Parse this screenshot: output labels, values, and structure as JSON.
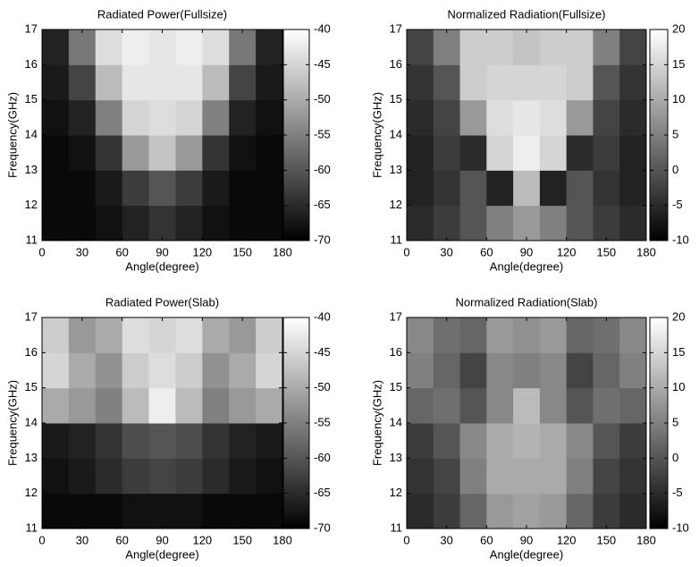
{
  "chart_data": [
    {
      "type": "heatmap",
      "title": "Radiated Power(Fullsize)",
      "xlabel": "Angle(degree)",
      "ylabel": "Frequency(GHz)",
      "x": [
        10,
        30,
        50,
        70,
        90,
        110,
        130,
        150,
        170
      ],
      "y": [
        11.5,
        12.5,
        13.5,
        14.5,
        15.5,
        16.5
      ],
      "z": [
        [
          -69,
          -69,
          -68,
          -66,
          -64,
          -66,
          -68,
          -69,
          -69
        ],
        [
          -69,
          -69,
          -67,
          -63,
          -60,
          -63,
          -67,
          -69,
          -69
        ],
        [
          -69,
          -68,
          -64,
          -52,
          -47,
          -52,
          -64,
          -68,
          -69
        ],
        [
          -68,
          -66,
          -55,
          -45,
          -44,
          -45,
          -55,
          -66,
          -68
        ],
        [
          -67,
          -62,
          -48,
          -43,
          -43,
          -43,
          -48,
          -62,
          -67
        ],
        [
          -66,
          -56,
          -44,
          -42,
          -43,
          -42,
          -44,
          -56,
          -66
        ]
      ],
      "xlim": [
        0,
        180
      ],
      "xticks": [
        0,
        30,
        60,
        90,
        120,
        150,
        180
      ],
      "ylim": [
        11,
        17
      ],
      "yticks": [
        11,
        12,
        13,
        14,
        15,
        16,
        17
      ],
      "zlim": [
        -70,
        -40
      ],
      "zticks": [
        -70,
        -65,
        -60,
        -55,
        -50,
        -45,
        -40
      ],
      "colormap": "gray"
    },
    {
      "type": "heatmap",
      "title": "Normalized Radiation(Fullsize)",
      "xlabel": "Angle(degree)",
      "ylabel": "Frequency(GHz)",
      "x": [
        10,
        30,
        50,
        70,
        90,
        110,
        130,
        150,
        170
      ],
      "y": [
        11.5,
        12.5,
        13.5,
        14.5,
        15.5,
        16.5
      ],
      "z": [
        [
          -5,
          -3,
          0,
          5,
          8,
          5,
          0,
          -3,
          -5
        ],
        [
          -6,
          -4,
          0,
          -6,
          12,
          -6,
          0,
          -4,
          -6
        ],
        [
          -6,
          -3,
          -5,
          15,
          18,
          15,
          -5,
          -3,
          -6
        ],
        [
          -5,
          -2,
          8,
          16,
          17,
          16,
          8,
          -2,
          -5
        ],
        [
          -4,
          0,
          14,
          15,
          15,
          15,
          14,
          0,
          -4
        ],
        [
          -2,
          5,
          14,
          14,
          13,
          14,
          14,
          5,
          -2
        ]
      ],
      "xlim": [
        0,
        180
      ],
      "xticks": [
        0,
        30,
        60,
        90,
        120,
        150,
        180
      ],
      "ylim": [
        11,
        17
      ],
      "yticks": [
        11,
        12,
        13,
        14,
        15,
        16,
        17
      ],
      "zlim": [
        -10,
        20
      ],
      "zticks": [
        -10,
        -5,
        0,
        5,
        10,
        15,
        20
      ],
      "colormap": "gray"
    },
    {
      "type": "heatmap",
      "title": "Radiated Power(Slab)",
      "xlabel": "Angle(degree)",
      "ylabel": "Frequency(GHz)",
      "x": [
        10,
        30,
        50,
        70,
        90,
        110,
        130,
        150,
        170
      ],
      "y": [
        11.5,
        12.5,
        13.5,
        14.5,
        15.5,
        16.5
      ],
      "z": [
        [
          -69,
          -69,
          -69,
          -68,
          -68,
          -68,
          -69,
          -69,
          -69
        ],
        [
          -68,
          -67,
          -65,
          -63,
          -62,
          -63,
          -65,
          -67,
          -68
        ],
        [
          -67,
          -66,
          -64,
          -61,
          -60,
          -61,
          -64,
          -66,
          -67
        ],
        [
          -50,
          -52,
          -55,
          -48,
          -42,
          -48,
          -55,
          -52,
          -50
        ],
        [
          -45,
          -50,
          -53,
          -46,
          -44,
          -46,
          -53,
          -50,
          -45
        ],
        [
          -46,
          -52,
          -50,
          -44,
          -45,
          -44,
          -50,
          -52,
          -46
        ]
      ],
      "xlim": [
        0,
        180
      ],
      "xticks": [
        0,
        30,
        60,
        90,
        120,
        150,
        180
      ],
      "ylim": [
        11,
        17
      ],
      "yticks": [
        11,
        12,
        13,
        14,
        15,
        16,
        17
      ],
      "zlim": [
        -70,
        -40
      ],
      "zticks": [
        -70,
        -65,
        -60,
        -55,
        -50,
        -45,
        -40
      ],
      "colormap": "gray"
    },
    {
      "type": "heatmap",
      "title": "Normalized Radiation(Slab)",
      "xlabel": "Angle(degree)",
      "ylabel": "Frequency(GHz)",
      "x": [
        10,
        30,
        50,
        70,
        90,
        110,
        130,
        150,
        170
      ],
      "y": [
        11.5,
        12.5,
        13.5,
        14.5,
        15.5,
        16.5
      ],
      "z": [
        [
          -5,
          -3,
          2,
          8,
          9,
          8,
          2,
          -3,
          -5
        ],
        [
          -4,
          -2,
          5,
          10,
          10,
          10,
          5,
          -2,
          -4
        ],
        [
          -3,
          0,
          6,
          10,
          11,
          10,
          6,
          0,
          -3
        ],
        [
          2,
          3,
          0,
          6,
          12,
          6,
          0,
          3,
          2
        ],
        [
          5,
          2,
          -2,
          6,
          5,
          6,
          -2,
          2,
          5
        ],
        [
          6,
          3,
          2,
          8,
          7,
          8,
          2,
          3,
          6
        ]
      ],
      "xlim": [
        0,
        180
      ],
      "xticks": [
        0,
        30,
        60,
        90,
        120,
        150,
        180
      ],
      "ylim": [
        11,
        17
      ],
      "yticks": [
        11,
        12,
        13,
        14,
        15,
        16,
        17
      ],
      "zlim": [
        -10,
        20
      ],
      "zticks": [
        -10,
        -5,
        0,
        5,
        10,
        15,
        20
      ],
      "colormap": "gray"
    }
  ]
}
